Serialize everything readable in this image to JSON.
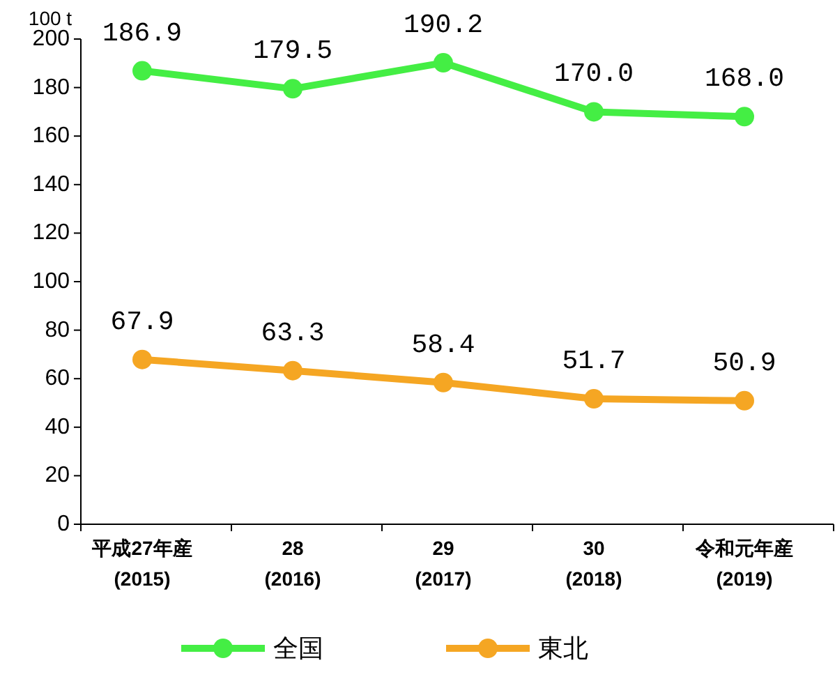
{
  "chart_data": {
    "type": "line",
    "ylabel": "100 t",
    "categories": [
      "平成27年産\n(2015)",
      "28\n(2016)",
      "29\n(2017)",
      "30\n(2018)",
      "令和元年産\n(2019)"
    ],
    "series": [
      {
        "name": "全国",
        "color": "#44ee44",
        "values": [
          186.9,
          179.5,
          190.2,
          170.0,
          168.0
        ],
        "value_labels": [
          "186.9",
          "179.5",
          "190.2",
          "170.0",
          "168.0"
        ]
      },
      {
        "name": "東北",
        "color": "#f5a623",
        "values": [
          67.9,
          63.3,
          58.4,
          51.7,
          50.9
        ],
        "value_labels": [
          "67.9",
          "63.3",
          "58.4",
          "51.7",
          "50.9"
        ]
      }
    ],
    "ylim": [
      0,
      200
    ],
    "yticks": [
      0,
      20,
      40,
      60,
      80,
      100,
      120,
      140,
      160,
      180,
      200
    ],
    "legend": "bottom",
    "marker": "circle"
  }
}
